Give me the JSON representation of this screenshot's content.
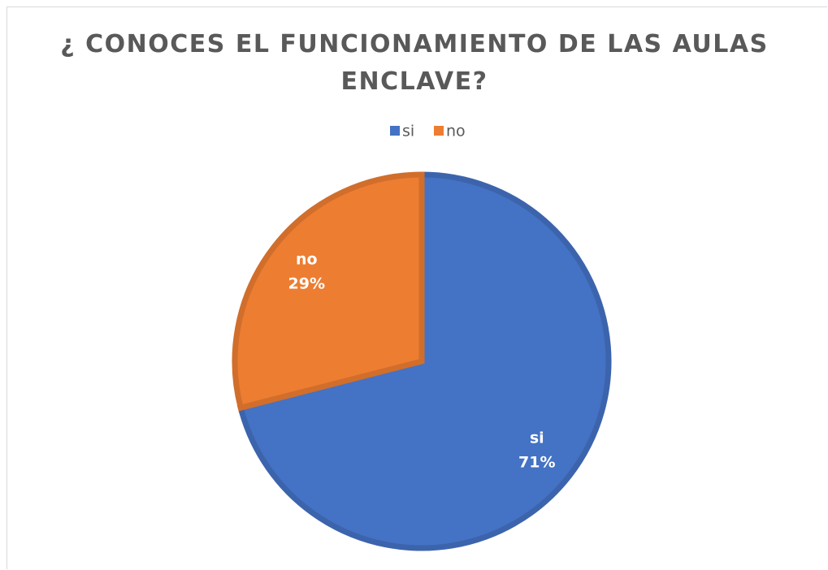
{
  "chart_data": {
    "type": "pie",
    "title": "¿ CONOCES EL FUNCIONAMIENTO DE LAS AULAS ENCLAVE?",
    "categories": [
      "si",
      "no"
    ],
    "values": [
      71,
      29
    ],
    "value_labels": [
      "71%",
      "29%"
    ],
    "colors": [
      "#4472c4",
      "#ed7d31"
    ],
    "legend": "top"
  }
}
